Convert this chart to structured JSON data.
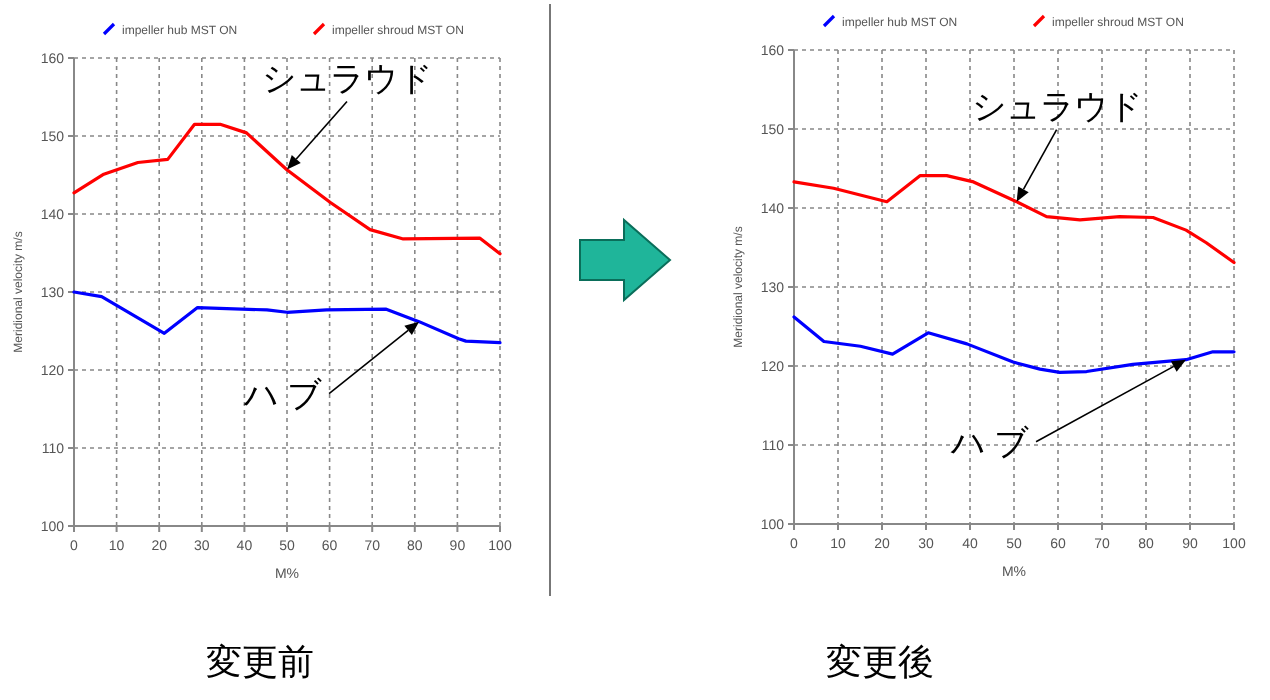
{
  "chart_data": [
    {
      "type": "line",
      "xlabel": "M%",
      "ylabel": "Meridional velocity m/s",
      "xlim": [
        0,
        100
      ],
      "ylim": [
        100,
        160
      ],
      "xticks": [
        0,
        10,
        20,
        30,
        40,
        50,
        60,
        70,
        80,
        90,
        100
      ],
      "yticks": [
        100,
        110,
        120,
        130,
        140,
        150,
        160
      ],
      "grid": true,
      "legend": "top",
      "marker": "none",
      "line_style": "solid",
      "series": [
        {
          "name": "impeller hub MST ON",
          "color": "#0000ff",
          "x": [
            0,
            6.5,
            21.2,
            29,
            45.3,
            50,
            59.3,
            73.3,
            81,
            90.3,
            92,
            100
          ],
          "values": [
            130,
            129.4,
            124.7,
            128,
            127.7,
            127.4,
            127.7,
            127.8,
            126.2,
            124,
            123.7,
            123.5
          ]
        },
        {
          "name": "impeller shroud MST ON",
          "color": "#ff0000",
          "x": [
            0,
            7,
            15,
            22,
            28.3,
            34.3,
            40.5,
            49.9,
            60.1,
            69.5,
            77.3,
            95.3,
            100
          ],
          "values": [
            142.7,
            145.1,
            146.6,
            147,
            151.5,
            151.5,
            150.4,
            145.7,
            141.5,
            138,
            136.8,
            136.9,
            134.9
          ]
        }
      ],
      "annotations": [
        {
          "text": "シュラウド",
          "x": 50,
          "y": 145.7
        },
        {
          "text": "ハ ブ",
          "x": 81,
          "y": 126.2
        },
        "変更前"
      ]
    },
    {
      "type": "line",
      "xlabel": "M%",
      "ylabel": "Meridional velocity m/s",
      "xlim": [
        0,
        100
      ],
      "ylim": [
        100,
        160
      ],
      "xticks": [
        0,
        10,
        20,
        30,
        40,
        50,
        60,
        70,
        80,
        90,
        100
      ],
      "yticks": [
        100,
        110,
        120,
        130,
        140,
        150,
        160
      ],
      "grid": true,
      "legend": "top",
      "marker": "none",
      "line_style": "solid",
      "series": [
        {
          "name": "impeller hub MST ON",
          "color": "#0000ff",
          "x": [
            0,
            6.8,
            15.1,
            22.4,
            30.5,
            39.3,
            49.8,
            55.9,
            60.4,
            66.5,
            77,
            89.1,
            95.2,
            100
          ],
          "values": [
            126.2,
            123.1,
            122.5,
            121.5,
            124.2,
            122.8,
            120.5,
            119.6,
            119.2,
            119.3,
            120.2,
            120.8,
            121.8,
            121.8
          ]
        },
        {
          "name": "impeller shroud MST ON",
          "color": "#ff0000",
          "x": [
            0,
            9,
            21.1,
            28.7,
            34.7,
            40.8,
            50.6,
            57.4,
            65,
            74,
            81.6,
            89.1,
            93.7,
            100
          ],
          "values": [
            143.3,
            142.5,
            140.8,
            144.1,
            144.1,
            143.3,
            140.8,
            138.9,
            138.5,
            138.9,
            138.8,
            137.2,
            135.6,
            133.1
          ]
        }
      ],
      "annotations": [
        {
          "text": "シュラウド",
          "x": 50.6,
          "y": 140.8
        },
        {
          "text": "ハ ブ",
          "x": 89.1,
          "y": 120.8
        },
        "変更後"
      ]
    }
  ]
}
